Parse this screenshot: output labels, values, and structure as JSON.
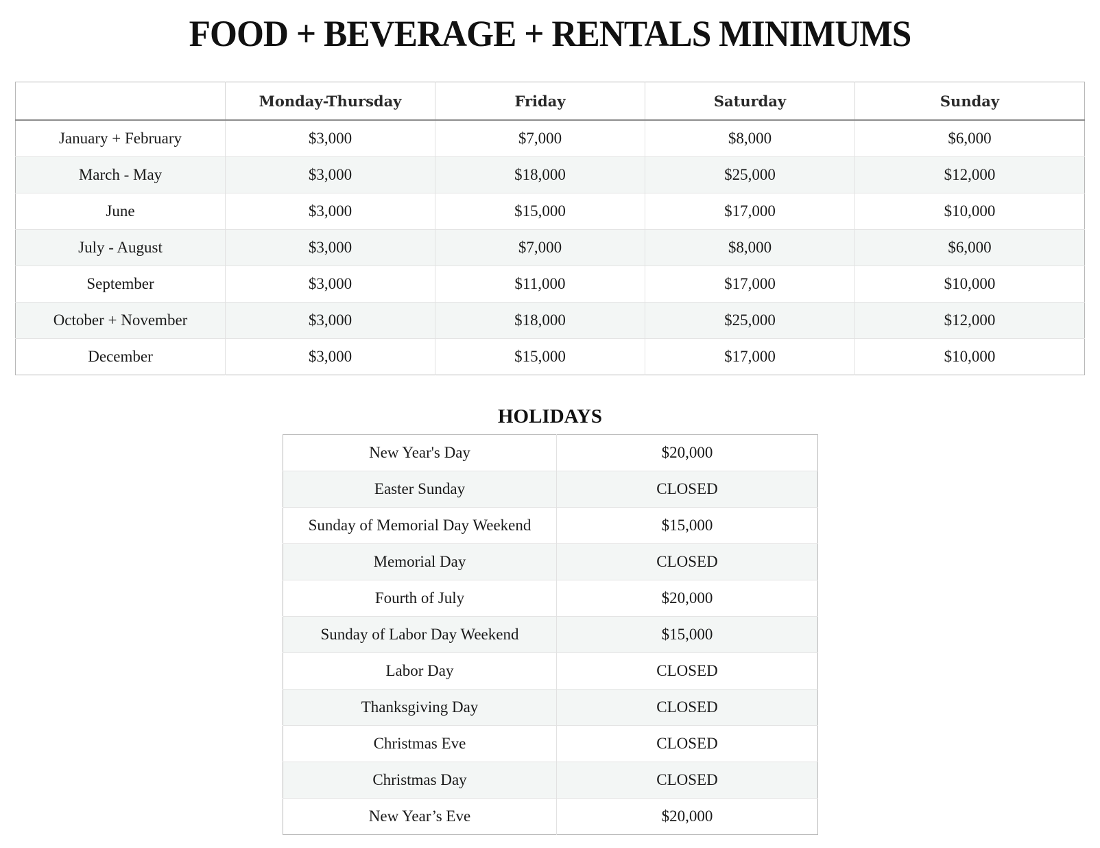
{
  "title": "FOOD + BEVERAGE + RENTALS MINIMUMS",
  "minimums": {
    "columns": [
      "",
      "Monday-Thursday",
      "Friday",
      "Saturday",
      "Sunday"
    ],
    "rows": [
      {
        "period": "January + February",
        "values": [
          "$3,000",
          "$7,000",
          "$8,000",
          "$6,000"
        ]
      },
      {
        "period": "March - May",
        "values": [
          "$3,000",
          "$18,000",
          "$25,000",
          "$12,000"
        ]
      },
      {
        "period": "June",
        "values": [
          "$3,000",
          "$15,000",
          "$17,000",
          "$10,000"
        ]
      },
      {
        "period": "July - August",
        "values": [
          "$3,000",
          "$7,000",
          "$8,000",
          "$6,000"
        ]
      },
      {
        "period": "September",
        "values": [
          "$3,000",
          "$11,000",
          "$17,000",
          "$10,000"
        ]
      },
      {
        "period": "October + November",
        "values": [
          "$3,000",
          "$18,000",
          "$25,000",
          "$12,000"
        ]
      },
      {
        "period": "December",
        "values": [
          "$3,000",
          "$15,000",
          "$17,000",
          "$10,000"
        ]
      }
    ]
  },
  "holidays": {
    "heading": "HOLIDAYS",
    "rows": [
      {
        "name": "New Year's Day",
        "value": "$20,000"
      },
      {
        "name": "Easter Sunday",
        "value": "CLOSED"
      },
      {
        "name": "Sunday of Memorial Day Weekend",
        "value": "$15,000"
      },
      {
        "name": "Memorial Day",
        "value": "CLOSED"
      },
      {
        "name": "Fourth of July",
        "value": "$20,000"
      },
      {
        "name": "Sunday of Labor Day Weekend",
        "value": "$15,000"
      },
      {
        "name": "Labor Day",
        "value": "CLOSED"
      },
      {
        "name": "Thanksgiving Day",
        "value": "CLOSED"
      },
      {
        "name": "Christmas Eve",
        "value": "CLOSED"
      },
      {
        "name": "Christmas Day",
        "value": "CLOSED"
      },
      {
        "name": "New Year’s Eve",
        "value": "$20,000"
      }
    ]
  }
}
